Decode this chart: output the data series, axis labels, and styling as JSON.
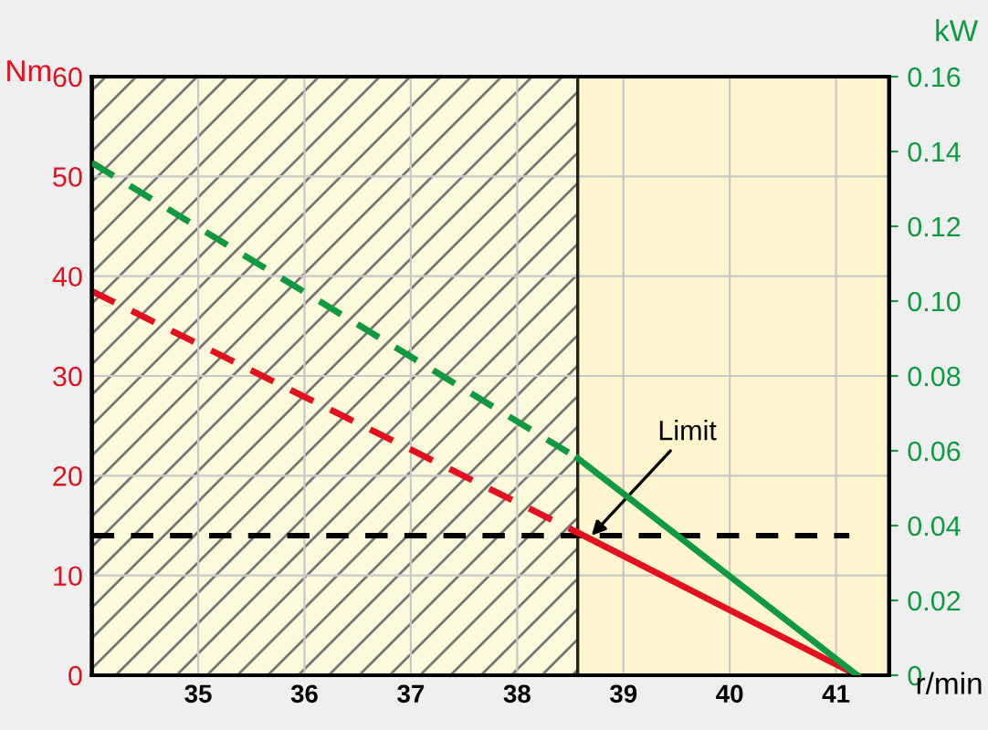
{
  "chart_data": {
    "type": "line",
    "xlabel": "r/min",
    "ylabel": "Nm",
    "y2label": "kW",
    "xlim": [
      34.0,
      41.5
    ],
    "xticks": [
      35,
      36,
      37,
      38,
      39,
      40,
      41
    ],
    "ylim": [
      0,
      60
    ],
    "yticks": [
      0,
      10,
      20,
      30,
      40,
      50,
      60
    ],
    "y2lim": [
      0,
      0.16
    ],
    "y2ticks": [
      {
        "value": 0,
        "label": "0"
      },
      {
        "value": 0.02,
        "label": "0.02"
      },
      {
        "value": 0.04,
        "label": "0.04"
      },
      {
        "value": 0.06,
        "label": "0.06"
      },
      {
        "value": 0.08,
        "label": "0.08"
      },
      {
        "value": 0.1,
        "label": "0.10"
      },
      {
        "value": 0.12,
        "label": "0.12"
      },
      {
        "value": 0.14,
        "label": "0.14"
      },
      {
        "value": 0.16,
        "label": "0.16"
      }
    ],
    "grid": true,
    "legend": false,
    "marker": "none",
    "series": [
      {
        "color": "#e3101e",
        "x": [
          34.0,
          38.57
        ],
        "values": [
          38.5,
          14.3
        ],
        "line_style": "dashed"
      },
      {
        "color": "#e3101e",
        "x": [
          38.57,
          41.2
        ],
        "values": [
          14.3,
          0
        ],
        "line_style": "solid"
      },
      {
        "color": "#0f9a42",
        "x": [
          34.0,
          38.57
        ],
        "values": [
          0.137,
          0.058
        ],
        "line_style": "dashed",
        "axis": "y2"
      },
      {
        "color": "#0f9a42",
        "x": [
          38.57,
          41.2
        ],
        "values": [
          0.058,
          0
        ],
        "line_style": "solid",
        "axis": "y2"
      }
    ],
    "ref_lines": [
      {
        "axis": "y",
        "value": 14,
        "color": "#000000",
        "line_style": "dashed"
      },
      {
        "axis": "x",
        "value": 38.57,
        "color": "#222222",
        "line_style": "solid"
      }
    ],
    "bands": [
      {
        "axis": "x",
        "from": 34.0,
        "to": 38.57,
        "color": "#fdf9dc"
      }
    ],
    "annotations": [
      {
        "text": "Limit",
        "x": 38.7,
        "y": 14
      }
    ]
  }
}
